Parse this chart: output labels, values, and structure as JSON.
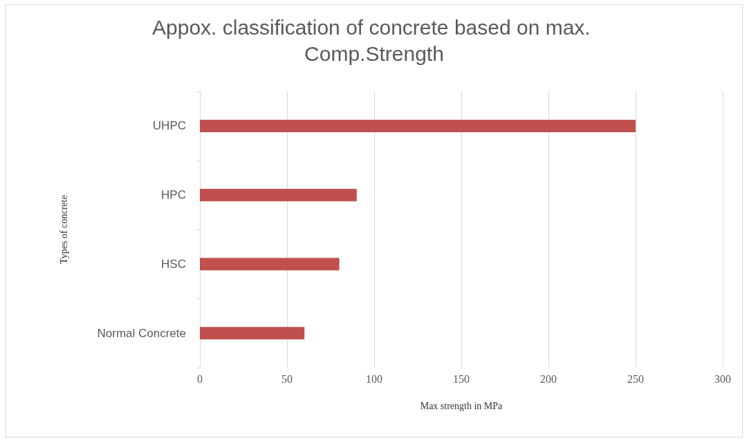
{
  "chart_data": {
    "type": "bar",
    "orientation": "horizontal",
    "title": "Appox. classification of concrete based on max. Comp.Strength",
    "xlabel": "Max strength in MPa",
    "ylabel": "Types of concrete",
    "categories": [
      "UHPC",
      "HPC",
      "HSC",
      "Normal Concrete"
    ],
    "values": [
      250,
      90,
      80,
      60
    ],
    "color": "#c0504d",
    "xlim": [
      0,
      300
    ],
    "xticks": [
      0,
      50,
      100,
      150,
      200,
      250,
      300
    ],
    "grid": "x"
  }
}
